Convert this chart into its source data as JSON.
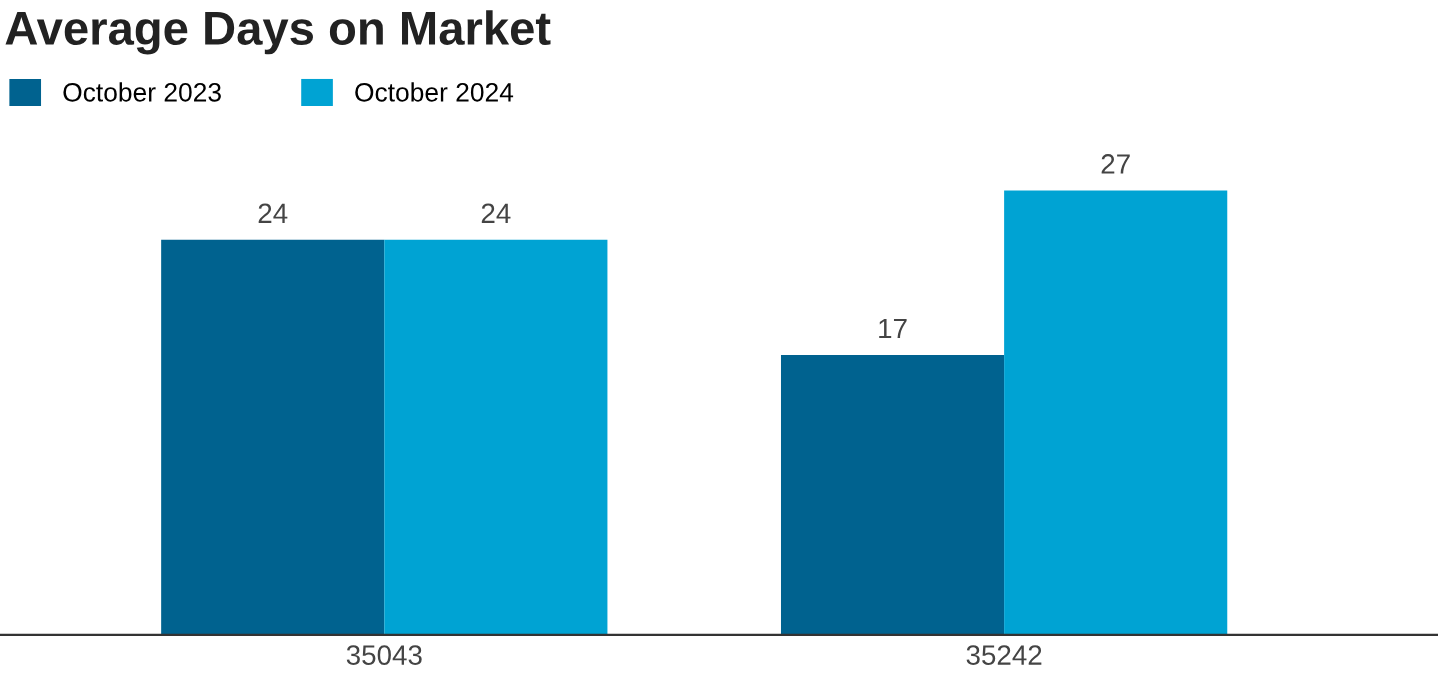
{
  "chart_data": {
    "type": "bar",
    "title": "Average Days on Market",
    "categories": [
      "35043",
      "35242"
    ],
    "series": [
      {
        "name": "October 2023",
        "color": "#00628f",
        "values": [
          24,
          17
        ]
      },
      {
        "name": "October 2024",
        "color": "#00a3d3",
        "values": [
          24,
          27
        ]
      }
    ],
    "data_labels": true,
    "legend": "top left",
    "grid": false
  }
}
